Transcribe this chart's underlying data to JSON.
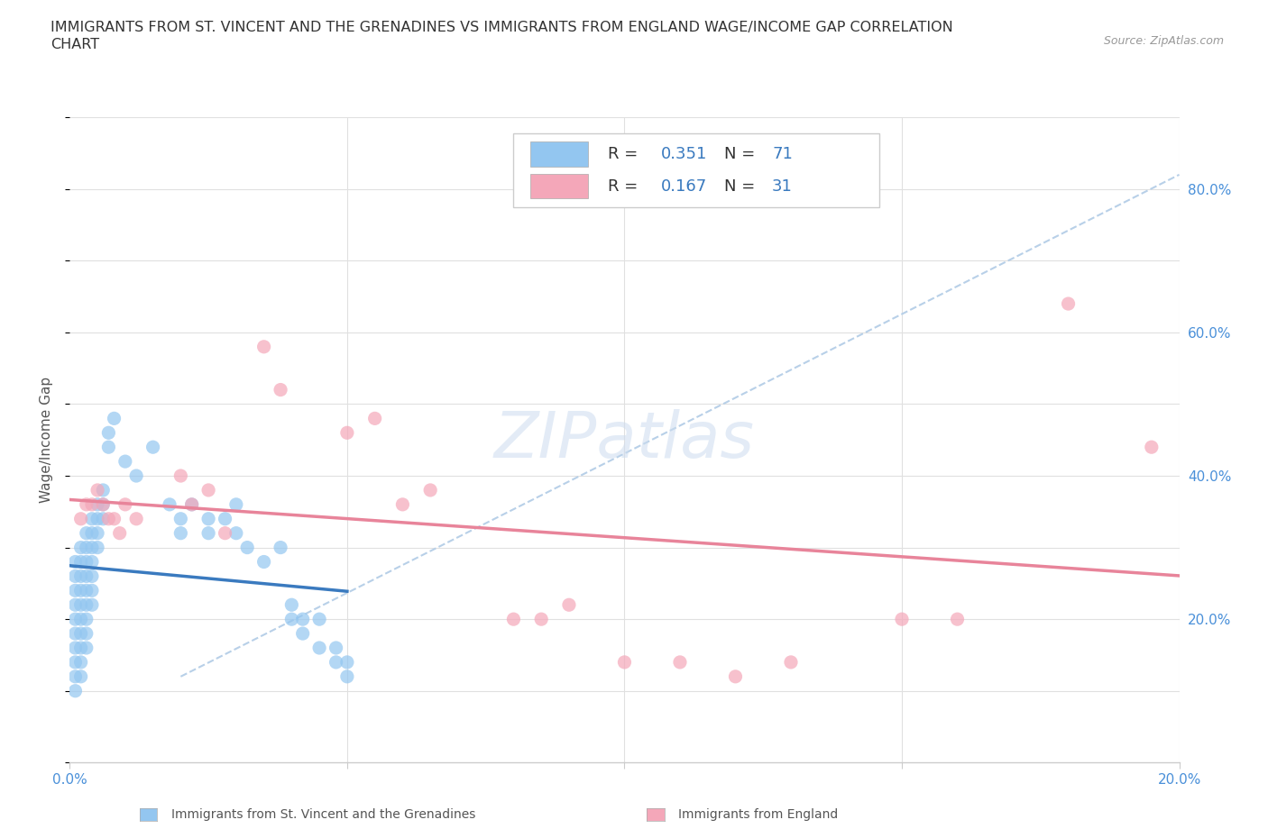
{
  "title_line1": "IMMIGRANTS FROM ST. VINCENT AND THE GRENADINES VS IMMIGRANTS FROM ENGLAND WAGE/INCOME GAP CORRELATION",
  "title_line2": "CHART",
  "source_text": "Source: ZipAtlas.com",
  "ylabel": "Wage/Income Gap",
  "watermark": "ZIPatlas",
  "blue_R": 0.351,
  "blue_N": 71,
  "pink_R": 0.167,
  "pink_N": 31,
  "blue_color": "#93c6f0",
  "pink_color": "#f4a7b9",
  "blue_line_color": "#3a7abf",
  "pink_line_color": "#e8849a",
  "dash_color": "#b8d0e8",
  "blue_scatter": [
    [
      0.001,
      0.28
    ],
    [
      0.001,
      0.26
    ],
    [
      0.001,
      0.24
    ],
    [
      0.001,
      0.22
    ],
    [
      0.001,
      0.2
    ],
    [
      0.001,
      0.18
    ],
    [
      0.001,
      0.16
    ],
    [
      0.001,
      0.14
    ],
    [
      0.001,
      0.12
    ],
    [
      0.001,
      0.1
    ],
    [
      0.002,
      0.3
    ],
    [
      0.002,
      0.28
    ],
    [
      0.002,
      0.26
    ],
    [
      0.002,
      0.24
    ],
    [
      0.002,
      0.22
    ],
    [
      0.002,
      0.2
    ],
    [
      0.002,
      0.18
    ],
    [
      0.002,
      0.16
    ],
    [
      0.002,
      0.14
    ],
    [
      0.002,
      0.12
    ],
    [
      0.003,
      0.32
    ],
    [
      0.003,
      0.3
    ],
    [
      0.003,
      0.28
    ],
    [
      0.003,
      0.26
    ],
    [
      0.003,
      0.24
    ],
    [
      0.003,
      0.22
    ],
    [
      0.003,
      0.2
    ],
    [
      0.003,
      0.18
    ],
    [
      0.003,
      0.16
    ],
    [
      0.004,
      0.34
    ],
    [
      0.004,
      0.32
    ],
    [
      0.004,
      0.3
    ],
    [
      0.004,
      0.28
    ],
    [
      0.004,
      0.26
    ],
    [
      0.004,
      0.24
    ],
    [
      0.004,
      0.22
    ],
    [
      0.005,
      0.36
    ],
    [
      0.005,
      0.34
    ],
    [
      0.005,
      0.32
    ],
    [
      0.005,
      0.3
    ],
    [
      0.006,
      0.38
    ],
    [
      0.006,
      0.36
    ],
    [
      0.006,
      0.34
    ],
    [
      0.007,
      0.46
    ],
    [
      0.007,
      0.44
    ],
    [
      0.008,
      0.48
    ],
    [
      0.01,
      0.42
    ],
    [
      0.012,
      0.4
    ],
    [
      0.015,
      0.44
    ],
    [
      0.018,
      0.36
    ],
    [
      0.02,
      0.34
    ],
    [
      0.02,
      0.32
    ],
    [
      0.022,
      0.36
    ],
    [
      0.025,
      0.34
    ],
    [
      0.025,
      0.32
    ],
    [
      0.028,
      0.34
    ],
    [
      0.03,
      0.36
    ],
    [
      0.03,
      0.32
    ],
    [
      0.032,
      0.3
    ],
    [
      0.035,
      0.28
    ],
    [
      0.038,
      0.3
    ],
    [
      0.04,
      0.2
    ],
    [
      0.04,
      0.22
    ],
    [
      0.042,
      0.2
    ],
    [
      0.042,
      0.18
    ],
    [
      0.045,
      0.2
    ],
    [
      0.045,
      0.16
    ],
    [
      0.048,
      0.16
    ],
    [
      0.048,
      0.14
    ],
    [
      0.05,
      0.14
    ],
    [
      0.05,
      0.12
    ]
  ],
  "pink_scatter": [
    [
      0.002,
      0.34
    ],
    [
      0.003,
      0.36
    ],
    [
      0.004,
      0.36
    ],
    [
      0.005,
      0.38
    ],
    [
      0.006,
      0.36
    ],
    [
      0.007,
      0.34
    ],
    [
      0.008,
      0.34
    ],
    [
      0.009,
      0.32
    ],
    [
      0.01,
      0.36
    ],
    [
      0.012,
      0.34
    ],
    [
      0.02,
      0.4
    ],
    [
      0.022,
      0.36
    ],
    [
      0.025,
      0.38
    ],
    [
      0.028,
      0.32
    ],
    [
      0.035,
      0.58
    ],
    [
      0.038,
      0.52
    ],
    [
      0.05,
      0.46
    ],
    [
      0.055,
      0.48
    ],
    [
      0.06,
      0.36
    ],
    [
      0.065,
      0.38
    ],
    [
      0.08,
      0.2
    ],
    [
      0.085,
      0.2
    ],
    [
      0.09,
      0.22
    ],
    [
      0.1,
      0.14
    ],
    [
      0.11,
      0.14
    ],
    [
      0.12,
      0.12
    ],
    [
      0.13,
      0.14
    ],
    [
      0.15,
      0.2
    ],
    [
      0.16,
      0.2
    ],
    [
      0.18,
      0.64
    ],
    [
      0.195,
      0.44
    ]
  ],
  "xmin": 0.0,
  "xmax": 0.2,
  "ymin": 0.0,
  "ymax": 0.9,
  "xtick_vals": [
    0.0,
    0.05,
    0.1,
    0.15,
    0.2
  ],
  "xtick_labels": [
    "0.0%",
    "",
    "",
    "",
    "20.0%"
  ],
  "ytick_vals": [
    0.0,
    0.1,
    0.2,
    0.3,
    0.4,
    0.5,
    0.6,
    0.7,
    0.8,
    0.9
  ],
  "ytick_right_labels": [
    "",
    "",
    "20.0%",
    "",
    "40.0%",
    "",
    "60.0%",
    "",
    "80.0%",
    ""
  ],
  "grid_color": "#e0e0e0",
  "bg_color": "#ffffff",
  "title_fontsize": 11.5,
  "tick_fontsize": 11,
  "ylabel_fontsize": 11,
  "tick_color": "#4a90d9",
  "legend_label_color": "#333333",
  "legend_val_color": "#3a7abf"
}
